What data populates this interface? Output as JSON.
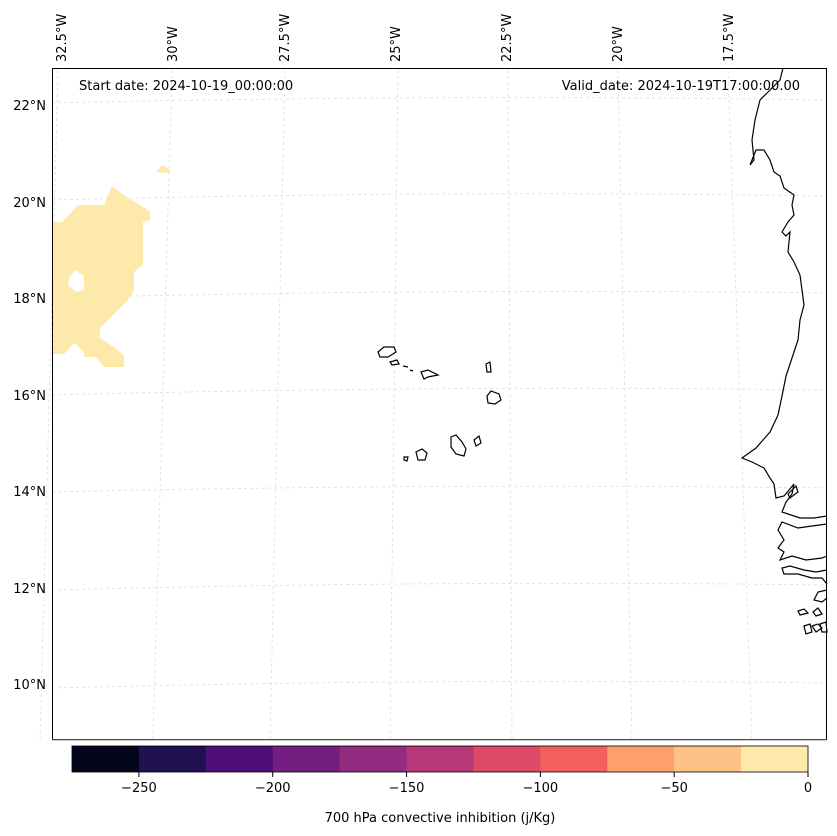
{
  "map": {
    "start_date": "Start date: 2024-10-19_00:00:00",
    "valid_date": "Valid_date: 2024-10-19T17:00:00.00",
    "lon_labels": [
      "32.5°W",
      "30°W",
      "27.5°W",
      "25°W",
      "22.5°W",
      "20°W",
      "17.5°W"
    ],
    "lat_labels": [
      "22°N",
      "20°N",
      "18°N",
      "16°N",
      "14°N",
      "12°N",
      "10°N"
    ]
  },
  "colorbar": {
    "label": "700 hPa convective inhibition (j/Kg)",
    "ticks": [
      "−250",
      "−200",
      "−150",
      "−100",
      "−50",
      "0"
    ],
    "range": [
      -275,
      0
    ],
    "colors": [
      "#03051a",
      "#221150",
      "#4f0f7b",
      "#721f81",
      "#932b80",
      "#b73779",
      "#de4968",
      "#f1605d",
      "#fe9f6d",
      "#fec287",
      "#fde9a9"
    ]
  },
  "styles": {
    "cin_shade": "#fde9a9",
    "coastline": "#000000",
    "gridline": "#dddddd"
  }
}
